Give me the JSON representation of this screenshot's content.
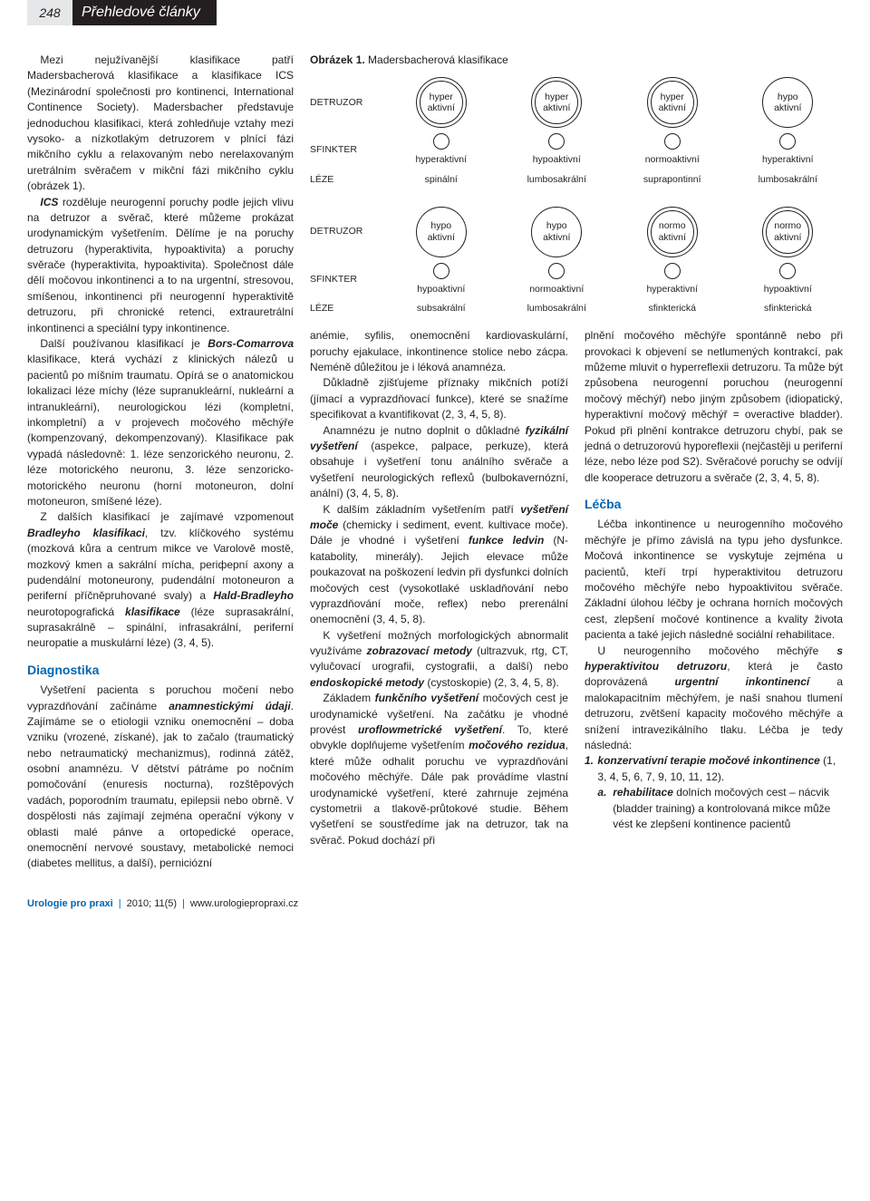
{
  "header": {
    "page_number": "248",
    "section_title": "Přehledové články"
  },
  "figure": {
    "title_bold": "Obrázek 1.",
    "title_rest": " Madersbacherová klasifikace",
    "row_labels": [
      "DETRUZOR",
      "SFINKTER",
      "LÉZE",
      "DETRUZOR",
      "SFINKTER",
      "LÉZE"
    ],
    "row1": [
      {
        "l1": "hyper",
        "l2": "aktivní",
        "double": true
      },
      {
        "l1": "hyper",
        "l2": "aktivní",
        "double": true
      },
      {
        "l1": "hyper",
        "l2": "aktivní",
        "double": true
      },
      {
        "l1": "hypo",
        "l2": "aktivní",
        "double": false
      }
    ],
    "row2_labels": [
      "hyperaktivní",
      "hypoaktivní",
      "normoaktivní",
      "hyperaktivní"
    ],
    "row3_labels": [
      "spinální",
      "lumbosakrální",
      "suprapontinní",
      "lumbosakrální"
    ],
    "row4": [
      {
        "l1": "hypo",
        "l2": "aktivní",
        "double": false
      },
      {
        "l1": "hypo",
        "l2": "aktivní",
        "double": false
      },
      {
        "l1": "normo",
        "l2": "aktivní",
        "double": true
      },
      {
        "l1": "normo",
        "l2": "aktivní",
        "double": true
      }
    ],
    "row5_labels": [
      "hypoaktivní",
      "normoaktivní",
      "hyperaktivní",
      "hypoaktivní"
    ],
    "row6_labels": [
      "subsakrální",
      "lumbosakrální",
      "sfinkterická",
      "sfinkterická"
    ]
  },
  "col1": {
    "p1a": "Mezi nejužívanější klasifikace patří Madersbacherová klasifikace a klasifikace ICS (Mezinárodní společnosti pro kontinenci, International Continence Society). Madersbacher představuje jednoduchou klasifikaci, která zohledňuje vztahy mezi vysoko- a nízkotlakým detruzorem v plnící fázi mikčního cyklu a relaxovaným nebo nerelaxovaným uretrálním svěračem v mikční fázi mikčního cyklu (obrázek 1).",
    "p1b_lead": "ICS",
    "p1b": " rozděluje neurogenní poruchy podle jejich vlivu na detruzor a svěrač, které můžeme prokázat urodynamickým vyšetřením. Dělíme je na poruchy detruzoru (hyperaktivita, hypoaktivita) a poruchy svěrače (hyperaktivita, hypoaktivita). Společnost dále dělí močovou inkontinenci a to na urgentní, stresovou, smíšenou, inkontinenci při neurogenní hyperaktivitě detruzoru, při chronické retenci, extrauretrální inkontinenci a speciální typy inkontinence.",
    "p2_lead": "Bors-Comarrova",
    "p2a": "Další používanou klasifikací je ",
    "p2b": " klasifikace, která vychází z klinických nálezů u pacientů po míšním traumatu. Opírá se o anatomickou lokalizaci léze míchy (léze supranukleární, nukleární a intranukleární), neurologickou lézi (kompletní, inkompletní) a v projevech močového měchýře (kompenzovaný, dekompenzovaný). Klasifikace pak vypadá následovně: 1. léze senzorického neuronu, 2. léze motorického neuronu, 3. léze senzoricko-motorického neuronu (horní motoneuron, dolní motoneuron, smíšené léze).",
    "p3a": "Z dalších klasifikací je zajímavé vzpomenout ",
    "p3_lead1": "Bradleyho klasifikaci",
    "p3b": ", tzv. klíčkového systému (mozková kůra a centrum mikce ve Varolově mostě, mozkový kmen a sakrální mícha, periферní axony a pudendální motoneurony, pudendální motoneuron a periferní příčněpruhované svaly) a ",
    "p3_lead2": "Hald-Bradleyho",
    "p3c": " neurotopografická ",
    "p3_lead3": "klasifikace",
    "p3d": " (léze suprasakrální, suprasakrálně – spinální, infrasakrální, periferní neuropatie a muskulární léze) (3, 4, 5).",
    "h_diag": "Diagnostika",
    "p4a": "Vyšetření pacienta s poruchou močení nebo vyprazdňování začínáme ",
    "p4_lead": "anamnestickými údaji",
    "p4b": ". Zajímáme se o etiologii vzniku onemocnění – doba vzniku (vrozené, získané), jak to začalo (traumatický nebo netraumatický mechanizmus), rodinná zátěž, osobní anamnézu. V dětství pátráme po nočním pomočování (enuresis nocturna), rozštěpových vadách, poporodním traumatu, epilepsii nebo obrně. V dospělosti nás zajímají zejména operační výkony v oblasti malé pánve a ortopedické operace, onemocnění nervové soustavy, metabolické nemoci (diabetes mellitus, a další), perniciózní"
  },
  "col2": {
    "p1": "anémie, syfilis, onemocnění kardiovaskulární, poruchy ejakulace, inkontinence stolice nebo zácpa. Neméně důležitou je i léková anamnéza.",
    "p2": "Důkladně zjišťujeme příznaky mikčních potíží (jímací a vyprazdňovací funkce), které se snažíme specifikovat a kvantifikovat (2, 3, 4, 5, 8).",
    "p3a": "Anamnézu je nutno doplnit o důkladné ",
    "p3_lead": "fyzikální vyšetření",
    "p3b": " (aspekce, palpace, perkuze), která obsahuje i vyšetření tonu análního svěrače a vyšetření neurologických reflexů (bulbokavernózní, anální) (3, 4, 5, 8).",
    "p4a": "K dalším základním vyšetřením patří ",
    "p4_lead1": "vyšetření moče",
    "p4b": " (chemicky i sediment, event. kultivace moče). Dále je vhodné i vyšetření ",
    "p4_lead2": "funkce ledvin",
    "p4c": " (N-katabolity, minerály). Jejich elevace může poukazovat na poškození ledvin při dysfunkci dolních močových cest (vysokotlaké uskladňování nebo vyprazdňování moče, reflex) nebo prerenální onemocnění (3, 4, 5, 8).",
    "p5a": "K vyšetření možných morfologických abnormalit využíváme ",
    "p5_lead1": "zobrazovací metody",
    "p5b": " (ultrazvuk, rtg, CT, vylučovací urografii, cystografii, a další) nebo ",
    "p5_lead2": "endoskopické metody",
    "p5c": " (cystoskopie) (2, 3, 4, 5, 8).",
    "p6a": "Základem ",
    "p6_lead1": "funkčního vyšetření",
    "p6b": " močových cest je urodynamické vyšetření. Na začátku je vhodné provést ",
    "p6_lead2": "uroflowmetrické vyšetření",
    "p6c": ". To, které obvykle doplňujeme vyšetřením ",
    "p6_lead3": "močového rezidua",
    "p6d": ", které může odhalit poruchu ve vyprazdňování močového měchýře. Dále pak provádíme vlastní urodynamické vyšetření, které zahrnuje zejména cystometrii a tlakově-průtokové studie. Během vyšetření se soustředíme jak na detruzor, tak na svěrač. Pokud dochází při"
  },
  "col3": {
    "p1a": "plnění močového měchýře spontánně nebo při provokaci k objevení se netlumených kontrakcí, pak můžeme mluvit o hyperreflexii detruzoru. Ta může být způsobena neurogenní poruchou (neurogenní močový měchýř) nebo jiným způsobem (idiopatický, hyperaktivní močový měchýř = overactive bladder). Pokud při plnění kontrakce detruzoru chybí, pak se jedná o detruzorovú hyporeflexii (nejčastěji u periferní léze, nebo léze pod S2). Svěračové poruchy se odvíjí dle kooperace detruzoru a svěrače (2, 3, 4, 5, 8).",
    "h_lecba": "Léčba",
    "p2": "Léčba inkontinence u neurogenního močového měchýře je přímo závislá na typu jeho dysfunkce. Močová inkontinence se vyskytuje zejména u pacientů, kteří trpí hyperaktivitou detruzoru močového měchýře nebo hypoaktivitou svěrače. Základní úlohou léčby je ochrana horních močových cest, zlepšení močové kontinence a kvality života pacienta a také jejich následné sociální rehabilitace.",
    "p3a": "U neurogenního močového měchýře ",
    "p3_lead": "s hyperaktivitou detruzoru",
    "p3b": ", která je často doprovázená ",
    "p3_lead2": "urgentní inkontinencí",
    "p3c": " a malokapacitním měchýřem, je naší snahou tlumení detruzoru, zvětšení kapacity močového měchýře a snížení intravezikálního tlaku. Léčba je tedy následná:",
    "list1_num": "1.",
    "list1_text": "konzervativní terapie močové inkontinence",
    "list1_refs": " (1, 3, 4, 5, 6, 7, 9, 10, 11, 12).",
    "list1a_alpha": "a.",
    "list1a_lead": "rehabilitace",
    "list1a_text": " dolních močových cest – nácvik (bladder training) a kontrolovaná mikce může vést ke zlepšení kontinence pacientů"
  },
  "footer": {
    "journal": "Urologie pro praxi",
    "issue": "2010; 11(5)",
    "url": "www.urologiepropraxi.cz"
  }
}
